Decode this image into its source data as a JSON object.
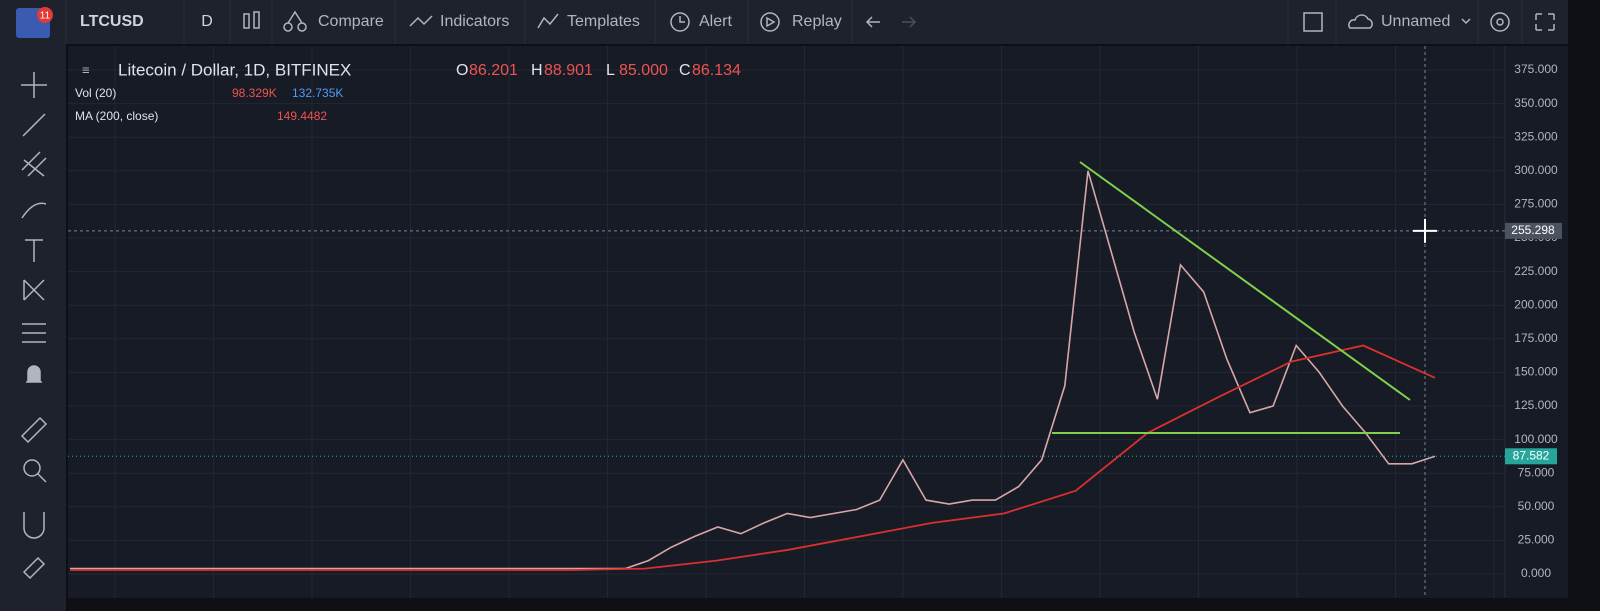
{
  "toolbar": {
    "badge": "11",
    "symbol": "LTCUSD",
    "interval": "D",
    "compare": "Compare",
    "indicators": "Indicators",
    "templates": "Templates",
    "alert": "Alert",
    "replay": "Replay",
    "layout": "Unnamed"
  },
  "legend": {
    "title": "Litecoin / Dollar, 1D, BITFINEX",
    "o_label": "O",
    "o": "86.201",
    "h_label": "H",
    "h": "88.901",
    "l_label": "L",
    "l": "85.000",
    "c_label": "C",
    "c": "86.134",
    "vol_name": "Vol (20)",
    "vol_1": "98.329K",
    "vol_2": "132.735K",
    "ma_name": "MA (200, close)",
    "ma_value": "149.4482"
  },
  "chart_data": {
    "type": "line",
    "ylim": [
      0,
      375
    ],
    "yticks": [
      {
        "value": 0,
        "label": "0.000"
      },
      {
        "value": 25,
        "label": "25.000"
      },
      {
        "value": 50,
        "label": "50.000"
      },
      {
        "value": 75,
        "label": "75.000"
      },
      {
        "value": 100,
        "label": "100.000"
      },
      {
        "value": 125,
        "label": "125.000"
      },
      {
        "value": 150,
        "label": "150.000"
      },
      {
        "value": 175,
        "label": "175.000"
      },
      {
        "value": 200,
        "label": "200.000"
      },
      {
        "value": 225,
        "label": "225.000"
      },
      {
        "value": 250,
        "label": "250.000"
      },
      {
        "value": 275,
        "label": "275.000"
      },
      {
        "value": 300,
        "label": "300.000"
      },
      {
        "value": 325,
        "label": "325.000"
      },
      {
        "value": 350,
        "label": "350.000"
      },
      {
        "value": 375,
        "label": "375.000"
      }
    ],
    "grid": true,
    "series": [
      {
        "color": "#d7a7a7",
        "values": [
          4,
          4,
          4,
          4,
          4,
          4,
          4,
          4,
          4,
          4,
          4,
          4,
          4,
          4,
          4,
          4,
          4,
          4,
          4,
          4,
          4,
          4,
          4,
          4,
          4,
          10,
          20,
          28,
          35,
          30,
          38,
          45,
          42,
          45,
          48,
          55,
          85,
          55,
          52,
          55,
          55,
          65,
          85,
          140,
          300,
          240,
          180,
          130,
          230,
          210,
          160,
          120,
          125,
          170,
          150,
          125,
          105,
          82,
          82,
          87.582
        ]
      },
      {
        "color": "#d8312e",
        "values": [
          3,
          3,
          3,
          3,
          3,
          3,
          3,
          3,
          4,
          10,
          18,
          28,
          38,
          45,
          62,
          105,
          132,
          158,
          170,
          146
        ]
      }
    ],
    "last_price": {
      "value": 87.582,
      "label": "87.582"
    },
    "crosshair": {
      "value": 255.298,
      "label": "255.298"
    }
  }
}
